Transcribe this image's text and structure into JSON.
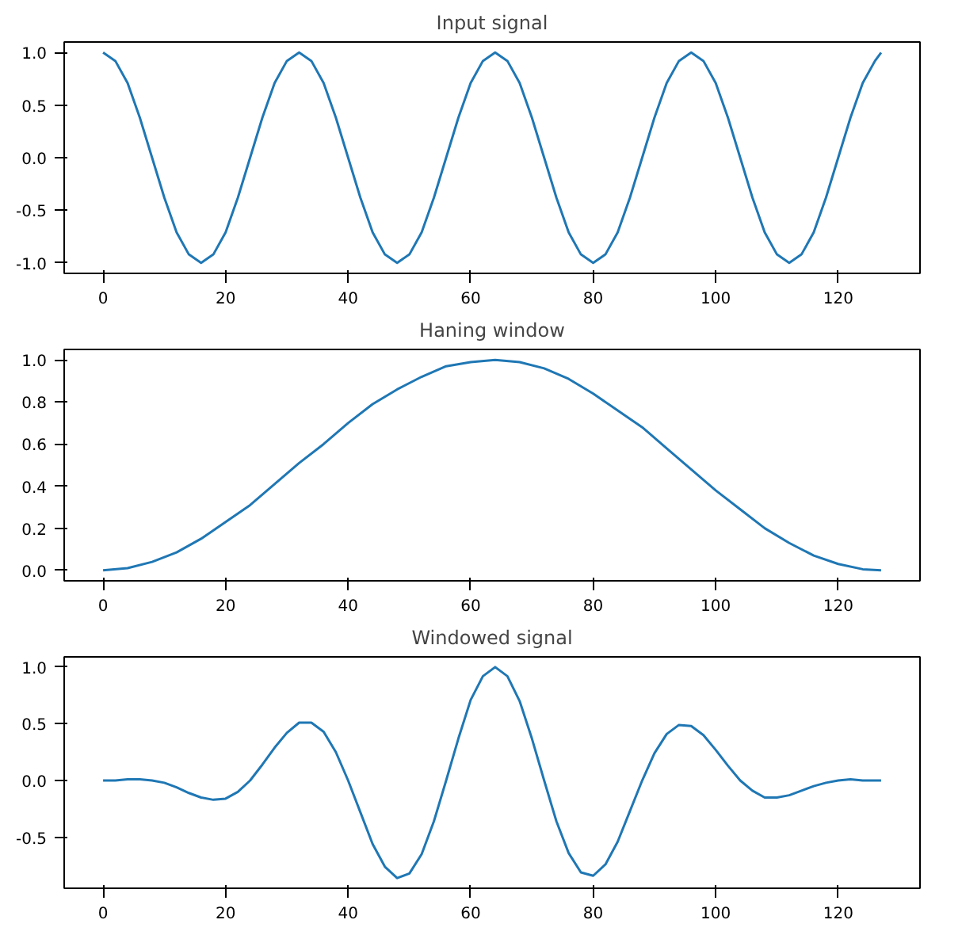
{
  "chart_data": [
    {
      "type": "line",
      "title": "Input signal",
      "xlim": [
        -6.35,
        133.35
      ],
      "ylim": [
        -1.1,
        1.1
      ],
      "xticks": [
        0,
        20,
        40,
        60,
        80,
        100,
        120
      ],
      "yticks": [
        {
          "value": -1,
          "label": "-1.0"
        },
        {
          "value": -0.5,
          "label": "-0.5"
        },
        {
          "value": 0,
          "label": "0.0"
        },
        {
          "value": 0.5,
          "label": "0.5"
        },
        {
          "value": 1,
          "label": "1.0"
        }
      ],
      "grid": false,
      "x": [
        0,
        2,
        4,
        6,
        8,
        10,
        12,
        14,
        16,
        18,
        20,
        22,
        24,
        26,
        28,
        30,
        32,
        34,
        36,
        38,
        40,
        42,
        44,
        46,
        48,
        50,
        52,
        54,
        56,
        58,
        60,
        62,
        64,
        66,
        68,
        70,
        72,
        74,
        76,
        78,
        80,
        82,
        84,
        86,
        88,
        90,
        92,
        94,
        96,
        98,
        100,
        102,
        104,
        106,
        108,
        110,
        112,
        114,
        116,
        118,
        120,
        122,
        124,
        126,
        127
      ],
      "series": [
        {
          "color": "#1f77b4",
          "values": [
            1,
            0.92,
            0.71,
            0.38,
            0,
            -0.38,
            -0.71,
            -0.92,
            -1,
            -0.92,
            -0.71,
            -0.38,
            0,
            0.38,
            0.71,
            0.92,
            1,
            0.92,
            0.71,
            0.38,
            0,
            -0.38,
            -0.71,
            -0.92,
            -1,
            -0.92,
            -0.71,
            -0.38,
            0,
            0.38,
            0.71,
            0.92,
            1,
            0.92,
            0.71,
            0.38,
            0,
            -0.38,
            -0.71,
            -0.92,
            -1,
            -0.92,
            -0.71,
            -0.38,
            0,
            0.38,
            0.71,
            0.92,
            1,
            0.92,
            0.71,
            0.38,
            0,
            -0.38,
            -0.71,
            -0.92,
            -1,
            -0.92,
            -0.71,
            -0.38,
            0,
            0.38,
            0.71,
            0.92,
            1
          ]
        }
      ]
    },
    {
      "type": "line",
      "title": "Haning window",
      "xlim": [
        -6.35,
        133.35
      ],
      "ylim": [
        -0.05,
        1.05
      ],
      "xticks": [
        0,
        20,
        40,
        60,
        80,
        100,
        120
      ],
      "yticks": [
        {
          "value": 0,
          "label": "0.0"
        },
        {
          "value": 0.2,
          "label": "0.2"
        },
        {
          "value": 0.4,
          "label": "0.4"
        },
        {
          "value": 0.6,
          "label": "0.6"
        },
        {
          "value": 0.8,
          "label": "0.8"
        },
        {
          "value": 1,
          "label": "1.0"
        }
      ],
      "grid": false,
      "x": [
        0,
        4,
        8,
        12,
        16,
        20,
        24,
        28,
        32,
        36,
        40,
        44,
        48,
        52,
        56,
        60,
        64,
        68,
        72,
        76,
        80,
        84,
        88,
        92,
        96,
        100,
        104,
        108,
        112,
        116,
        120,
        124,
        127
      ],
      "series": [
        {
          "color": "#1f77b4",
          "values": [
            0,
            0.01,
            0.04,
            0.085,
            0.15,
            0.23,
            0.31,
            0.41,
            0.51,
            0.6,
            0.7,
            0.79,
            0.86,
            0.92,
            0.97,
            0.99,
            1,
            0.99,
            0.96,
            0.91,
            0.84,
            0.76,
            0.68,
            0.58,
            0.48,
            0.38,
            0.29,
            0.2,
            0.13,
            0.07,
            0.03,
            0.005,
            0
          ]
        }
      ]
    },
    {
      "type": "line",
      "title": "Windowed signal",
      "xlim": [
        -6.35,
        133.35
      ],
      "ylim": [
        -0.95,
        1.09
      ],
      "xticks": [
        0,
        20,
        40,
        60,
        80,
        100,
        120
      ],
      "yticks": [
        {
          "value": -0.5,
          "label": "-0.5"
        },
        {
          "value": 0,
          "label": "0.0"
        },
        {
          "value": 0.5,
          "label": "0.5"
        },
        {
          "value": 1,
          "label": "1.0"
        }
      ],
      "grid": false,
      "x": [
        0,
        2,
        4,
        6,
        8,
        10,
        12,
        14,
        16,
        18,
        20,
        22,
        24,
        26,
        28,
        30,
        32,
        34,
        36,
        38,
        40,
        42,
        44,
        46,
        48,
        50,
        52,
        54,
        56,
        58,
        60,
        62,
        64,
        66,
        68,
        70,
        72,
        74,
        76,
        78,
        80,
        82,
        84,
        86,
        88,
        90,
        92,
        94,
        96,
        98,
        100,
        102,
        104,
        106,
        108,
        110,
        112,
        114,
        116,
        118,
        120,
        122,
        124,
        126,
        127
      ],
      "series": [
        {
          "color": "#1f77b4",
          "values": [
            0,
            0,
            0.01,
            0.01,
            0,
            -0.02,
            -0.06,
            -0.11,
            -0.15,
            -0.17,
            -0.16,
            -0.1,
            0,
            0.14,
            0.29,
            0.42,
            0.51,
            0.51,
            0.43,
            0.25,
            0,
            -0.28,
            -0.56,
            -0.76,
            -0.86,
            -0.82,
            -0.65,
            -0.36,
            0,
            0.37,
            0.71,
            0.92,
            1,
            0.92,
            0.7,
            0.37,
            0,
            -0.36,
            -0.64,
            -0.81,
            -0.84,
            -0.74,
            -0.54,
            -0.27,
            0,
            0.24,
            0.41,
            0.49,
            0.48,
            0.4,
            0.27,
            0.13,
            0,
            -0.09,
            -0.15,
            -0.15,
            -0.13,
            -0.09,
            -0.05,
            -0.02,
            0,
            0.01,
            0,
            0,
            0
          ]
        }
      ]
    }
  ]
}
